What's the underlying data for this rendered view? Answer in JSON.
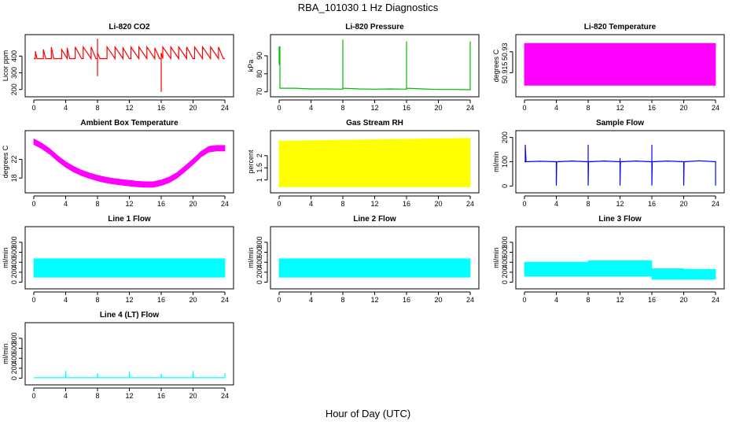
{
  "title": "RBA_101030  1 Hz Diagnostics",
  "xlabel": "Hour of Day (UTC)",
  "chart_data": [
    {
      "id": "co2",
      "type": "line",
      "title": "Li-820 CO2",
      "ylabel": "Licor ppm",
      "color": "#ff0000",
      "xlim": [
        0,
        24
      ],
      "xticks": [
        0,
        4,
        8,
        12,
        16,
        20,
        24
      ],
      "ylim": [
        175,
        510
      ],
      "yticks": [
        200,
        300,
        400
      ],
      "series": [
        {
          "x": [
            0,
            0.2,
            0.2,
            0.4,
            1.2,
            1.2,
            1.5,
            2.2,
            2.2,
            2.5,
            3.5,
            3.5,
            4.2,
            4.2,
            4.5,
            5.2,
            5.2,
            6,
            6.2,
            6.2,
            7.2,
            7.2,
            7.8,
            8,
            8,
            8,
            8,
            8.3,
            8.6,
            9.2,
            9.2,
            10.2,
            10.2,
            11.2,
            11.2,
            12,
            12.2,
            12.2,
            13.2,
            13.2,
            14.2,
            14.2,
            15.2,
            15.2,
            15.8,
            16,
            16,
            16,
            16.2,
            16.2,
            17.2,
            17.2,
            18.2,
            18.2,
            19.2,
            19.2,
            20,
            20.2,
            20.2,
            21.2,
            21.2,
            22.2,
            22.2,
            23.2,
            23.2,
            23.8,
            24
          ],
          "y": [
            385,
            385,
            430,
            385,
            385,
            440,
            385,
            385,
            455,
            385,
            385,
            440,
            385,
            450,
            385,
            385,
            455,
            385,
            385,
            455,
            385,
            455,
            385,
            385,
            505,
            280,
            420,
            385,
            385,
            385,
            455,
            385,
            455,
            385,
            450,
            385,
            385,
            455,
            385,
            455,
            385,
            455,
            385,
            450,
            385,
            385,
            185,
            420,
            385,
            455,
            385,
            455,
            385,
            455,
            385,
            455,
            385,
            385,
            455,
            385,
            455,
            385,
            455,
            385,
            455,
            385,
            385
          ]
        }
      ]
    },
    {
      "id": "pressure",
      "type": "line",
      "title": "Li-820 Pressure",
      "ylabel": "kPa",
      "color": "#00bb00",
      "xlim": [
        0,
        24
      ],
      "xticks": [
        0,
        4,
        8,
        12,
        16,
        20,
        24
      ],
      "ylim": [
        69,
        100
      ],
      "yticks": [
        70,
        80,
        90
      ],
      "series": [
        {
          "x": [
            0,
            0,
            0.1,
            0.1,
            0.1,
            2,
            4,
            6,
            7.95,
            8,
            8,
            8,
            8.05,
            10,
            12,
            14,
            15.95,
            16,
            16,
            16,
            16.05,
            18,
            20,
            22,
            23.95,
            24,
            24
          ],
          "y": [
            85,
            95,
            95,
            86,
            72,
            72,
            71.6,
            71.6,
            71.5,
            71.5,
            99,
            72,
            72,
            71.6,
            71.5,
            71.6,
            71.5,
            71.5,
            98,
            72,
            72,
            71.6,
            71.3,
            71.3,
            71.2,
            71.2,
            98
          ]
        }
      ]
    },
    {
      "id": "licor_temp",
      "type": "area",
      "title": "Li-820 Temperature",
      "ylabel": "degrees C",
      "color": "#ff00ff",
      "xlim": [
        0,
        24
      ],
      "xticks": [
        0,
        4,
        8,
        12,
        16,
        20,
        24
      ],
      "ylim": [
        50.9,
        50.94
      ],
      "yticks": [
        50.915,
        50.93
      ],
      "series": [
        {
          "name": "",
          "x": [
            0,
            24
          ],
          "y_low": [
            50.906,
            50.906
          ],
          "y_high": [
            50.936,
            50.936
          ]
        }
      ]
    },
    {
      "id": "box_temp",
      "type": "area",
      "title": "Ambient Box Temperature",
      "ylabel": "degrees C",
      "color": "#ff00ff",
      "xlim": [
        0,
        24
      ],
      "xticks": [
        0,
        4,
        8,
        12,
        16,
        20,
        24
      ],
      "ylim": [
        15.5,
        27.5
      ],
      "yticks": [
        18,
        22
      ],
      "series": [
        {
          "name": "",
          "x": [
            0,
            1,
            2,
            3,
            4,
            5,
            6,
            7,
            8,
            9,
            10,
            11,
            12,
            13,
            14,
            15,
            16,
            17,
            18,
            19,
            20,
            21,
            22,
            23,
            24
          ],
          "y_low": [
            25.2,
            24.3,
            23.1,
            21.6,
            20.3,
            19.3,
            18.5,
            17.9,
            17.4,
            17.0,
            16.7,
            16.5,
            16.3,
            16.1,
            16.0,
            16.0,
            16.4,
            17.0,
            18.0,
            19.4,
            20.9,
            22.5,
            23.6,
            23.8,
            23.8
          ],
          "y_high": [
            26.4,
            25.5,
            24.3,
            22.8,
            21.5,
            20.5,
            19.7,
            19.1,
            18.6,
            18.2,
            17.9,
            17.7,
            17.5,
            17.3,
            17.2,
            17.2,
            17.6,
            18.2,
            19.2,
            20.6,
            22.1,
            23.7,
            24.8,
            25.0,
            25.0
          ]
        }
      ]
    },
    {
      "id": "gas_rh",
      "type": "area",
      "title": "Gas Stream RH",
      "ylabel": "percent",
      "color": "#ffff00",
      "xlim": [
        0,
        24
      ],
      "xticks": [
        0,
        4,
        8,
        12,
        16,
        20,
        24
      ],
      "ylim": [
        0.6,
        2.9
      ],
      "yticks": [
        1.0,
        1.5,
        2.0
      ],
      "series": [
        {
          "name": "",
          "x": [
            0,
            24
          ],
          "y_low": [
            0.72,
            0.72
          ],
          "y_high": [
            2.6,
            2.72
          ]
        }
      ]
    },
    {
      "id": "sample_flow",
      "type": "line",
      "title": "Sample Flow",
      "ylabel": "ml/min",
      "color": "#0000ff",
      "xlim": [
        0,
        24
      ],
      "xticks": [
        0,
        4,
        8,
        12,
        16,
        20,
        24
      ],
      "ylim": [
        -15,
        215
      ],
      "yticks": [
        0,
        100,
        200
      ],
      "series": [
        {
          "x": [
            0,
            0.1,
            0.1,
            0.2,
            0.2,
            2,
            3.95,
            4,
            4,
            4.05,
            6,
            7.95,
            8,
            8,
            8,
            8.05,
            10,
            11.95,
            12,
            12,
            12,
            12.05,
            14,
            15.95,
            16,
            16,
            16,
            16.05,
            18,
            19.95,
            20,
            20,
            20,
            20.05,
            22,
            23.95,
            24,
            24
          ],
          "y": [
            100,
            100,
            170,
            100,
            100,
            102,
            100,
            100,
            2,
            100,
            103,
            100,
            100,
            170,
            2,
            100,
            103,
            100,
            100,
            115,
            2,
            100,
            103,
            100,
            100,
            170,
            2,
            100,
            103,
            100,
            100,
            35,
            2,
            100,
            104,
            100,
            100,
            2
          ]
        }
      ]
    },
    {
      "id": "line1",
      "type": "area",
      "title": "Line 1 Flow",
      "ylabel": "ml/min",
      "color": "#00ffff",
      "xlim": [
        0,
        24
      ],
      "xticks": [
        0,
        4,
        8,
        12,
        16,
        20,
        24
      ],
      "ylim": [
        -70,
        1050
      ],
      "yticks": [
        0,
        200,
        400,
        600,
        800
      ],
      "series": [
        {
          "name": "",
          "x": [
            0,
            24
          ],
          "y_low": [
            100,
            100
          ],
          "y_high": [
            470,
            470
          ]
        }
      ]
    },
    {
      "id": "line2",
      "type": "area",
      "title": "Line 2 Flow",
      "ylabel": "ml/min",
      "color": "#00ffff",
      "xlim": [
        0,
        24
      ],
      "xticks": [
        0,
        4,
        8,
        12,
        16,
        20,
        24
      ],
      "ylim": [
        -70,
        1050
      ],
      "yticks": [
        0,
        200,
        400,
        600,
        800
      ],
      "series": [
        {
          "name": "",
          "x": [
            0,
            24
          ],
          "y_low": [
            100,
            100
          ],
          "y_high": [
            470,
            470
          ]
        }
      ]
    },
    {
      "id": "line3",
      "type": "area",
      "title": "Line 3 Flow",
      "ylabel": "ml/min",
      "color": "#00ffff",
      "xlim": [
        0,
        24
      ],
      "xticks": [
        0,
        4,
        8,
        12,
        16,
        20,
        24
      ],
      "ylim": [
        -70,
        1050
      ],
      "yticks": [
        0,
        200,
        400,
        600,
        800
      ],
      "series": [
        {
          "name": "",
          "x": [
            0,
            4,
            4,
            8,
            8,
            16,
            16,
            20,
            20,
            24
          ],
          "y_low": [
            120,
            120,
            120,
            120,
            120,
            120,
            60,
            60,
            60,
            60
          ],
          "y_high": [
            400,
            400,
            400,
            400,
            430,
            430,
            270,
            270,
            260,
            260
          ]
        }
      ]
    },
    {
      "id": "line4",
      "type": "line",
      "title": "Line 4 (LT) Flow",
      "ylabel": "ml/min",
      "color": "#00ffff",
      "xlim": [
        0,
        24
      ],
      "xticks": [
        0,
        4,
        8,
        12,
        16,
        20,
        24
      ],
      "ylim": [
        -70,
        1050
      ],
      "yticks": [
        0,
        200,
        400,
        600,
        800
      ],
      "series": [
        {
          "x": [
            0,
            3.95,
            4,
            4,
            4.05,
            7.95,
            8,
            8,
            8.05,
            11.95,
            12,
            12,
            12.05,
            15.95,
            16,
            16,
            16.05,
            19.95,
            20,
            20,
            20.05,
            23.95,
            24,
            24
          ],
          "y": [
            10,
            10,
            10,
            150,
            10,
            10,
            10,
            100,
            10,
            10,
            10,
            140,
            10,
            10,
            10,
            90,
            10,
            10,
            10,
            145,
            10,
            10,
            10,
            100
          ]
        }
      ]
    }
  ]
}
